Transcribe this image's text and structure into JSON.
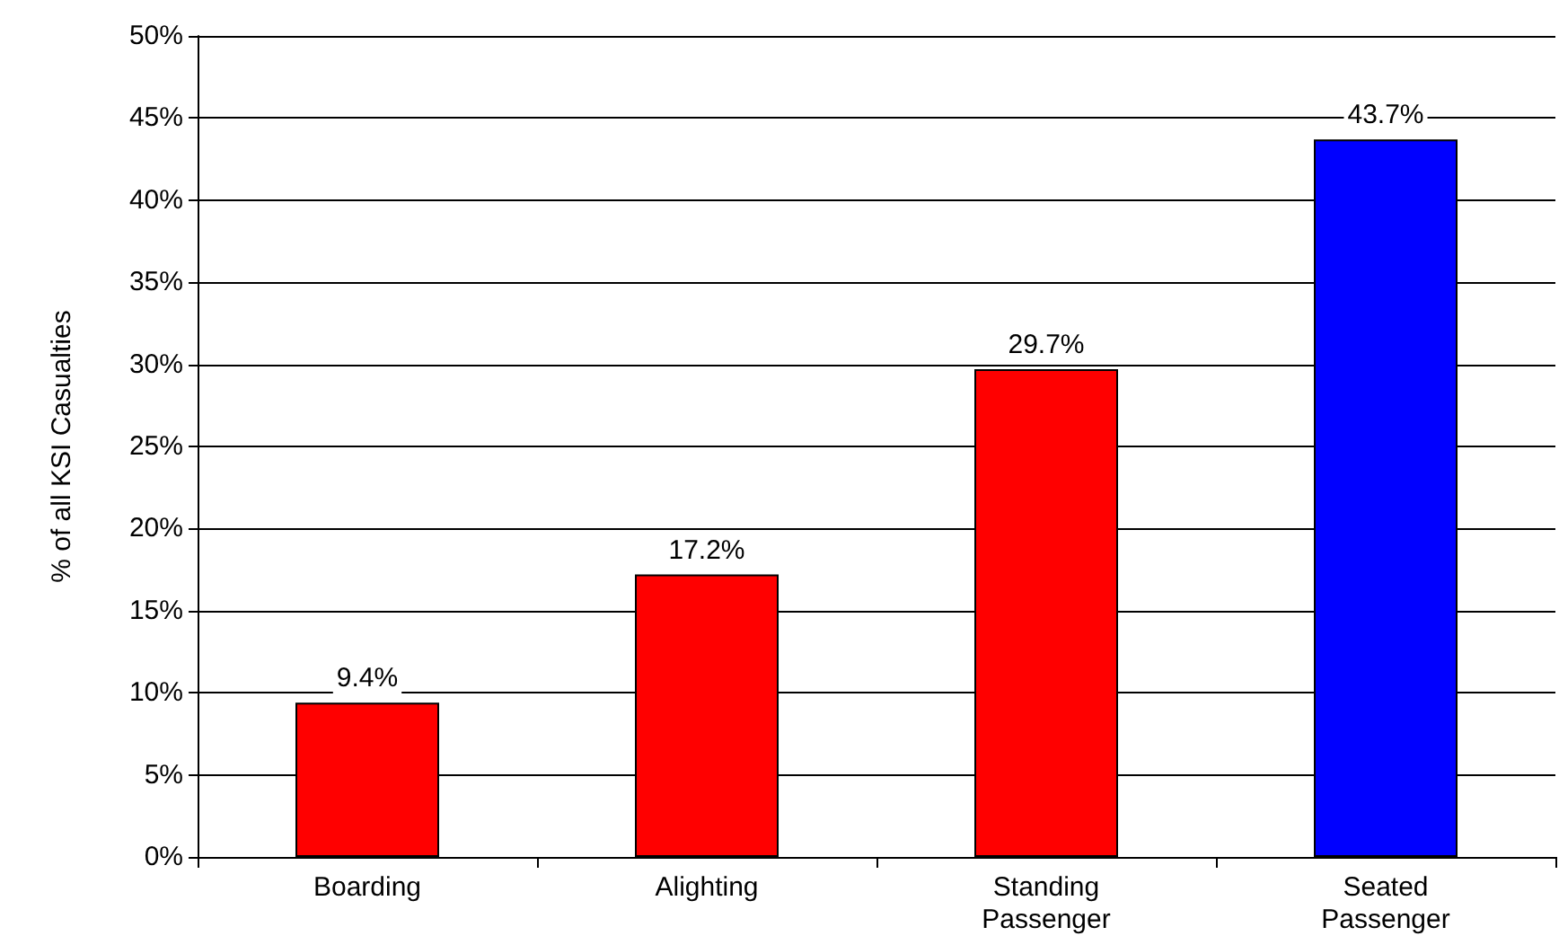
{
  "chart_data": {
    "type": "bar",
    "ylabel": "% of all KSI Casualties",
    "categories": [
      "Boarding",
      "Alighting",
      "Standing\nPassenger",
      "Seated\nPassenger"
    ],
    "values": [
      9.4,
      17.2,
      29.7,
      43.7
    ],
    "colors": [
      "#ff0000",
      "#ff0000",
      "#ff0000",
      "#0000ff"
    ],
    "value_labels": [
      "9.4%",
      "17.2%",
      "29.7%",
      "43.7%"
    ],
    "ylim": [
      0,
      50
    ],
    "yticks": [
      {
        "value": 0,
        "label": "0%"
      },
      {
        "value": 5,
        "label": "5%"
      },
      {
        "value": 10,
        "label": "10%"
      },
      {
        "value": 15,
        "label": "15%"
      },
      {
        "value": 20,
        "label": "20%"
      },
      {
        "value": 25,
        "label": "25%"
      },
      {
        "value": 30,
        "label": "30%"
      },
      {
        "value": 35,
        "label": "35%"
      },
      {
        "value": 40,
        "label": "40%"
      },
      {
        "value": 45,
        "label": "45%"
      },
      {
        "value": 50,
        "label": "50%"
      }
    ],
    "grid": "y"
  }
}
